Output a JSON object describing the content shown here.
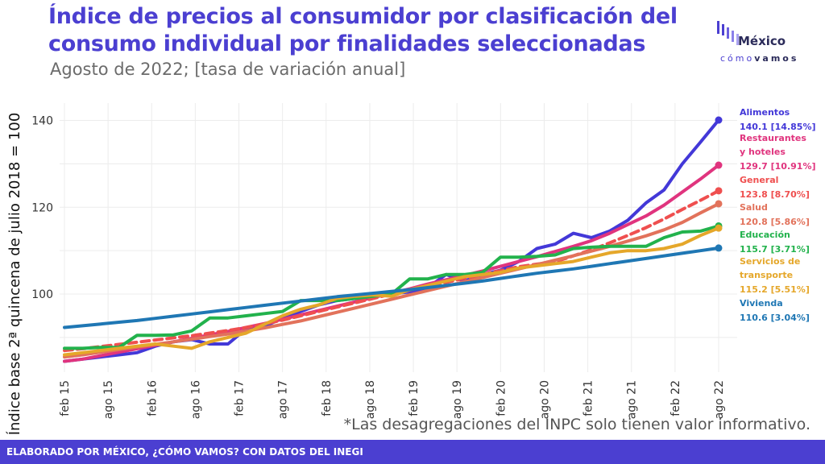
{
  "header": {
    "title": "Índice de precios al consumidor por clasificación del consumo individual por finalidades seleccionadas",
    "subtitle": "Agosto de 2022; [tasa de variación anual]"
  },
  "logo": {
    "name": "México",
    "tagline_a": "cómo",
    "tagline_b": "vamos"
  },
  "note": "*Las desagregaciones del INPC solo tienen valor informativo.",
  "footer": "ELABORADO POR MÉXICO, ¿CÓMO VAMOS? CON DATOS DEL INEGI",
  "chart_data": {
    "type": "line",
    "ylabel": "Índice base 2ª quincena de julio 2018 = 100",
    "ylim": [
      82,
      144
    ],
    "yticks": [
      100,
      120,
      140
    ],
    "grid": true,
    "x_ticks": [
      "feb 15",
      "ago 15",
      "feb 16",
      "ago 16",
      "feb 17",
      "ago 17",
      "feb 18",
      "ago 18",
      "feb 19",
      "ago 19",
      "feb 20",
      "ago 20",
      "feb 21",
      "ago 21",
      "feb 22",
      "ago 22"
    ],
    "legend_placement": "right, end-of-line labels",
    "series": [
      {
        "name": "Alimentos",
        "label_lines": [
          "Alimentos"
        ],
        "value_label": "140.1 [14.85%]",
        "color": "#4338d8",
        "dashed": false,
        "values": [
          84.5,
          85.0,
          85.5,
          86.0,
          86.5,
          88.0,
          89.0,
          89.5,
          88.5,
          88.5,
          92.0,
          92.5,
          94.5,
          96.0,
          97.5,
          98.5,
          99.0,
          99.5,
          100.0,
          100.5,
          101.5,
          104.5,
          103.0,
          104.5,
          105.5,
          107.5,
          110.5,
          111.5,
          114.0,
          113.0,
          114.5,
          117.0,
          121.0,
          124.0,
          130.0,
          135.0,
          140.1
        ]
      },
      {
        "name": "Restaurantes y hoteles",
        "label_lines": [
          "Restaurantes",
          "y hoteles"
        ],
        "value_label": "129.7 [10.91%]",
        "color": "#e0347e",
        "dashed": false,
        "values": [
          84.5,
          85.0,
          85.8,
          86.6,
          87.4,
          88.2,
          89.0,
          89.8,
          90.6,
          91.4,
          92.3,
          93.2,
          94.2,
          95.2,
          96.2,
          97.2,
          98.2,
          99.2,
          100.2,
          101.2,
          102.3,
          103.3,
          104.3,
          105.3,
          106.4,
          107.5,
          108.6,
          109.8,
          111.0,
          112.3,
          114.0,
          116.0,
          118.0,
          120.5,
          123.5,
          126.5,
          129.7
        ]
      },
      {
        "name": "General",
        "label_lines": [
          "General"
        ],
        "value_label": "123.8 [8.70%]",
        "color": "#ef4f4f",
        "dashed": true,
        "values": [
          87.0,
          87.4,
          87.9,
          88.4,
          88.9,
          89.4,
          89.9,
          90.4,
          91.0,
          91.6,
          92.3,
          93.1,
          94.0,
          95.0,
          96.0,
          97.0,
          98.0,
          99.0,
          100.0,
          100.9,
          101.8,
          102.7,
          103.6,
          104.5,
          105.4,
          106.3,
          106.9,
          107.4,
          108.8,
          110.2,
          111.8,
          113.5,
          115.3,
          117.3,
          119.5,
          121.6,
          123.8
        ]
      },
      {
        "name": "Salud",
        "label_lines": [
          "Salud"
        ],
        "value_label": "120.8 [5.86%]",
        "color": "#e2725b",
        "dashed": false,
        "values": [
          85.5,
          86.0,
          86.6,
          87.2,
          87.8,
          88.4,
          89.0,
          89.6,
          90.2,
          90.8,
          91.5,
          92.2,
          93.0,
          93.8,
          94.8,
          95.8,
          96.8,
          97.8,
          98.8,
          99.8,
          100.8,
          101.8,
          102.8,
          103.8,
          104.8,
          105.8,
          106.8,
          107.8,
          108.8,
          109.9,
          111.0,
          112.2,
          113.4,
          114.8,
          116.5,
          118.7,
          120.8
        ]
      },
      {
        "name": "Educación",
        "label_lines": [
          "Educación"
        ],
        "value_label": "115.7 [3.71%]",
        "color": "#22b24c",
        "dashed": false,
        "values": [
          87.5,
          87.5,
          87.7,
          87.7,
          90.5,
          90.5,
          90.6,
          91.5,
          94.5,
          94.5,
          95.0,
          95.5,
          96.0,
          98.5,
          98.5,
          98.5,
          99.0,
          99.5,
          100.0,
          103.5,
          103.5,
          104.5,
          104.5,
          105.0,
          108.5,
          108.5,
          108.7,
          109.0,
          110.5,
          110.8,
          111.0,
          111.0,
          111.0,
          113.0,
          114.3,
          114.5,
          115.7
        ]
      },
      {
        "name": "Servicios de transporte",
        "label_lines": [
          "Servicios de",
          "transporte"
        ],
        "value_label": "115.2 [5.51%]",
        "color": "#e5a72a",
        "dashed": false,
        "values": [
          86.0,
          86.5,
          87.0,
          87.5,
          88.0,
          88.5,
          88.0,
          87.5,
          89.0,
          90.0,
          91.0,
          93.0,
          95.0,
          96.5,
          97.5,
          99.0,
          99.5,
          99.8,
          99.5,
          101.0,
          102.0,
          103.0,
          104.0,
          104.5,
          105.0,
          106.0,
          106.5,
          107.0,
          107.5,
          108.5,
          109.5,
          110.0,
          110.0,
          110.5,
          111.5,
          113.5,
          115.2
        ]
      },
      {
        "name": "Vivienda",
        "label_lines": [
          "Vivienda"
        ],
        "value_label": "110.6 [3.04%]",
        "color": "#1f77b4",
        "dashed": false,
        "values": [
          92.3,
          92.7,
          93.1,
          93.5,
          93.9,
          94.4,
          94.9,
          95.4,
          95.9,
          96.4,
          96.9,
          97.4,
          97.9,
          98.4,
          98.9,
          99.4,
          99.8,
          100.2,
          100.6,
          101.0,
          101.5,
          102.0,
          102.5,
          103.0,
          103.6,
          104.2,
          104.8,
          105.3,
          105.8,
          106.4,
          107.0,
          107.6,
          108.2,
          108.8,
          109.4,
          110.0,
          110.6
        ]
      }
    ]
  }
}
